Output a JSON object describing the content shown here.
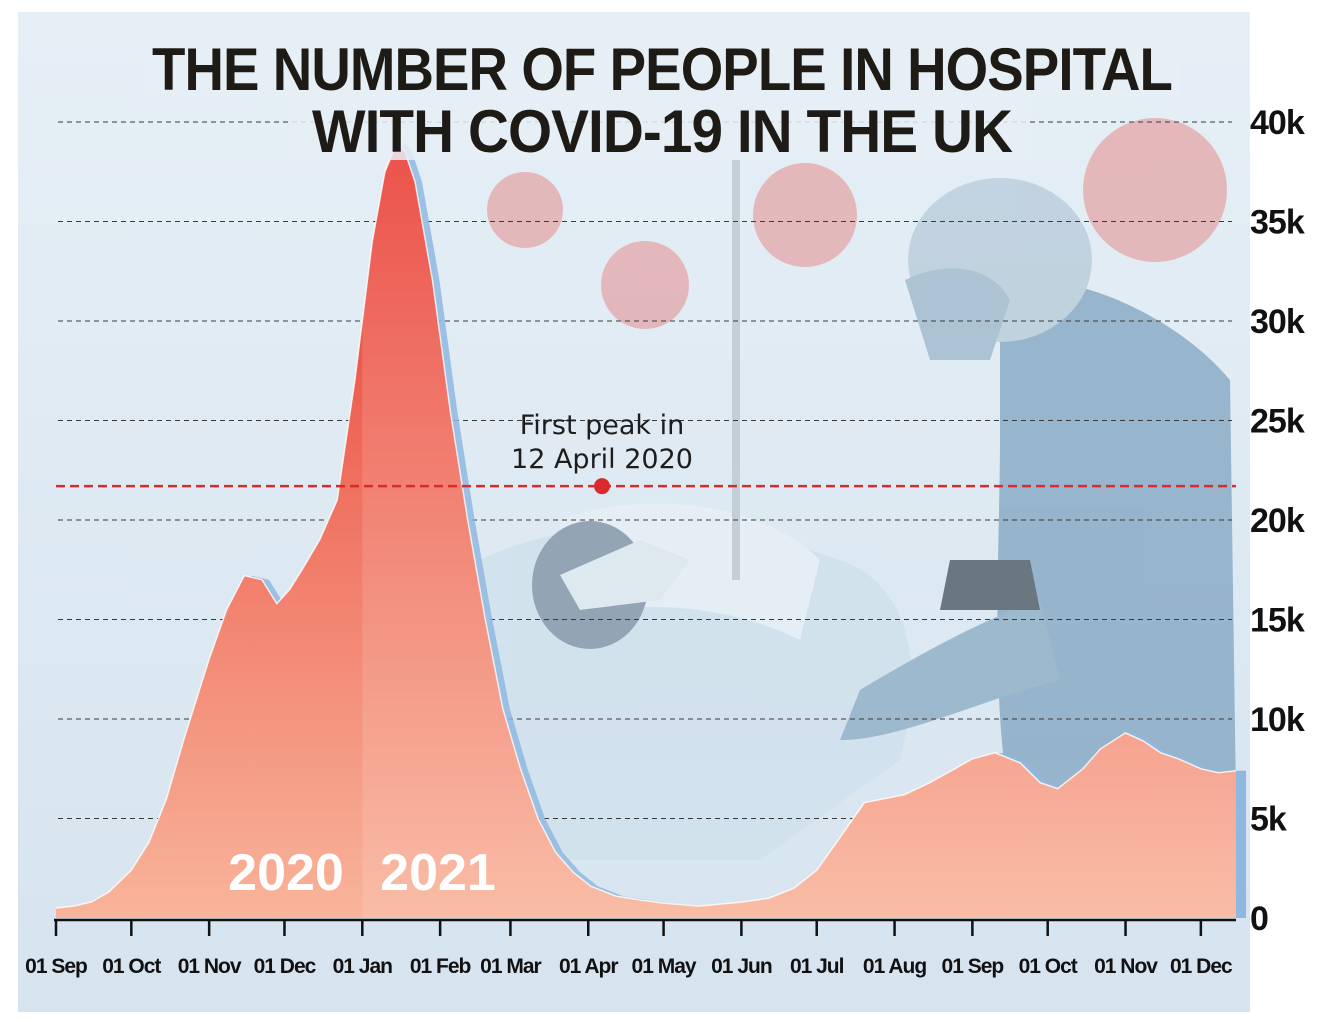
{
  "title_lines": [
    "THE NUMBER OF PEOPLE IN HOSPITAL",
    "WITH COVID-19 IN THE UK"
  ],
  "colors": {
    "area_top": "#e93a31",
    "area_bottom": "#f8b49a",
    "area_2021_tint": "#ffffff",
    "shadow": "#8fb8e0",
    "reference_line": "#d92b2b",
    "background": "#dde9f2"
  },
  "chart_data": {
    "type": "area",
    "title": "THE NUMBER OF PEOPLE IN HOSPITAL WITH COVID-19 IN THE UK",
    "xlabel": "",
    "ylabel": "",
    "ylim": [
      0,
      40000
    ],
    "xlim": [
      "2020-09-01",
      "2021-12-15"
    ],
    "yticks": [
      0,
      5000,
      10000,
      15000,
      20000,
      25000,
      30000,
      35000,
      40000
    ],
    "ytick_labels": [
      "0",
      "5k",
      "10k",
      "15k",
      "20k",
      "25k",
      "30k",
      "35k",
      "40k"
    ],
    "xticks": [
      "2020-09-01",
      "2020-10-01",
      "2020-11-01",
      "2020-12-01",
      "2021-01-01",
      "2021-02-01",
      "2021-03-01",
      "2021-04-01",
      "2021-05-01",
      "2021-06-01",
      "2021-07-01",
      "2021-08-01",
      "2021-09-01",
      "2021-10-01",
      "2021-11-01",
      "2021-12-01"
    ],
    "xtick_labels": [
      "01 Sep",
      "01 Oct",
      "01 Nov",
      "01 Dec",
      "01 Jan",
      "01 Feb",
      "01 Mar",
      "01 Apr",
      "01 May",
      "01 Jun",
      "01 Jul",
      "01 Aug",
      "01 Sep",
      "01 Oct",
      "01 Nov",
      "01 Dec"
    ],
    "grid": true,
    "series": [
      {
        "x": [
          "2020-09-01",
          "2020-09-08",
          "2020-09-15",
          "2020-09-22",
          "2020-10-01",
          "2020-10-08",
          "2020-10-15",
          "2020-10-22",
          "2020-11-01",
          "2020-11-08",
          "2020-11-15",
          "2020-11-22",
          "2020-11-28",
          "2020-12-03",
          "2020-12-08",
          "2020-12-15",
          "2020-12-22",
          "2020-12-29",
          "2021-01-05",
          "2021-01-10",
          "2021-01-15",
          "2021-01-18",
          "2021-01-22",
          "2021-01-29",
          "2021-02-05",
          "2021-02-12",
          "2021-02-19",
          "2021-02-26",
          "2021-03-05",
          "2021-03-12",
          "2021-03-19",
          "2021-03-26",
          "2021-04-02",
          "2021-04-12",
          "2021-04-22",
          "2021-05-01",
          "2021-05-15",
          "2021-06-01",
          "2021-06-12",
          "2021-06-22",
          "2021-07-01",
          "2021-07-10",
          "2021-07-20",
          "2021-07-28",
          "2021-08-05",
          "2021-08-15",
          "2021-08-25",
          "2021-09-01",
          "2021-09-10",
          "2021-09-20",
          "2021-09-28",
          "2021-10-05",
          "2021-10-15",
          "2021-10-22",
          "2021-11-01",
          "2021-11-08",
          "2021-11-15",
          "2021-11-22",
          "2021-12-01",
          "2021-12-08",
          "2021-12-15"
        ],
        "y": [
          500,
          600,
          800,
          1300,
          2400,
          3800,
          6000,
          9000,
          13000,
          15500,
          17200,
          17000,
          15800,
          16500,
          17500,
          19000,
          21000,
          27000,
          34000,
          37500,
          39000,
          38500,
          37000,
          32000,
          25500,
          20000,
          15000,
          10500,
          7500,
          5000,
          3300,
          2300,
          1600,
          1100,
          900,
          750,
          600,
          800,
          1000,
          1500,
          2400,
          4000,
          5800,
          6000,
          6200,
          6800,
          7500,
          8000,
          8300,
          7800,
          6800,
          6500,
          7500,
          8500,
          9300,
          8900,
          8300,
          8000,
          7500,
          7300,
          7400
        ]
      }
    ],
    "reference_lines": [
      {
        "y": 21700,
        "label": "First peak in\n12 April 2020",
        "date": "2020-04-12"
      }
    ],
    "period_labels": [
      "2020",
      "2021"
    ],
    "legend": "none"
  },
  "annotation": {
    "line1": "First peak in",
    "line2": "12 April 2020"
  }
}
